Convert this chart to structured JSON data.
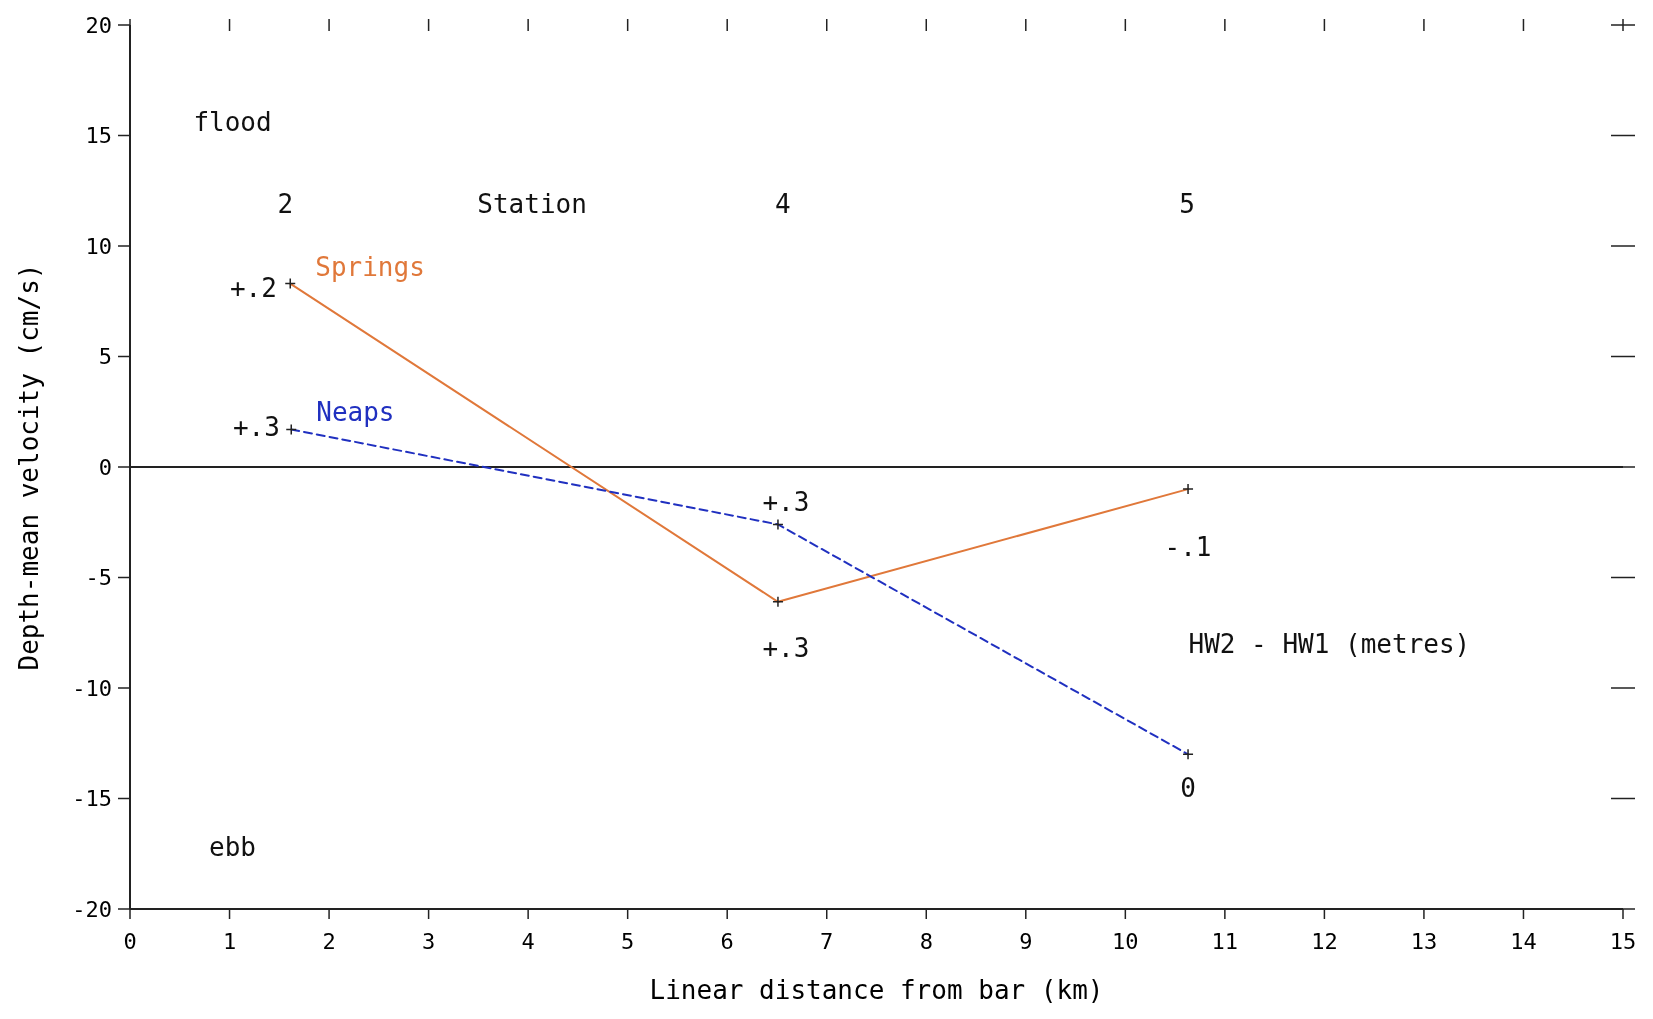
{
  "chart_data": {
    "type": "line",
    "xlabel": "Linear distance from bar   (km)",
    "ylabel": "Depth-mean velocity (cm/s)",
    "xlim": [
      0,
      15
    ],
    "xticks": [
      0,
      1,
      2,
      3,
      4,
      5,
      6,
      7,
      8,
      9,
      10,
      11,
      12,
      13,
      14,
      15
    ],
    "ylim": [
      -20,
      20
    ],
    "yticks": [
      -20,
      -15,
      -10,
      -5,
      0,
      5,
      10,
      15,
      20
    ],
    "grid": false,
    "marker": "cross",
    "series": [
      {
        "name": "Springs",
        "color": "#e0783a",
        "line_style": "solid",
        "x": [
          1.61,
          6.51,
          10.63
        ],
        "values": [
          8.3,
          -6.1,
          -1.0
        ]
      },
      {
        "name": "Neaps",
        "color": "#2030c0",
        "line_style": "dashed",
        "x": [
          1.62,
          6.51,
          10.63
        ],
        "values": [
          1.7,
          -2.6,
          -13.0
        ]
      }
    ],
    "ref_lines": [
      {
        "axis": "y",
        "value": 0,
        "color": "#222222",
        "line_style": "solid"
      }
    ],
    "annotations": [
      "flood",
      "ebb",
      "2",
      "Station",
      "4",
      "5",
      "+.2",
      "+.3",
      "+.3",
      "+.3",
      "-.1",
      "0",
      "HW2 - HW1  (metres)"
    ]
  }
}
